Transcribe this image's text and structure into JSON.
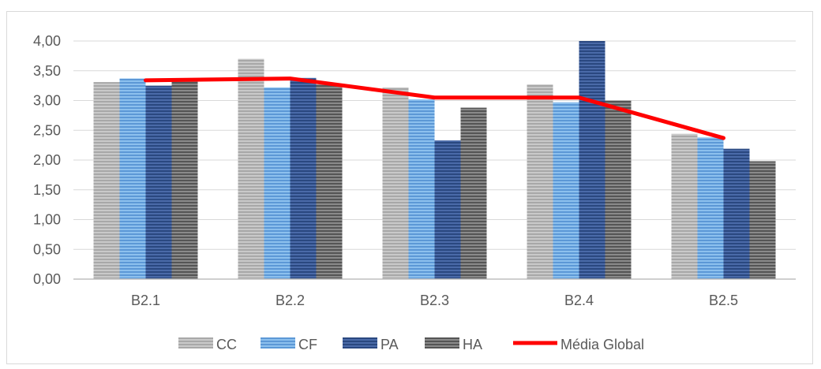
{
  "chart_data": {
    "type": "bar",
    "title": "",
    "xlabel": "",
    "ylabel": "",
    "categories": [
      "B2.1",
      "B2.2",
      "B2.3",
      "B2.4",
      "B2.5"
    ],
    "ylim": [
      0,
      4
    ],
    "yticks": [
      "0,00",
      "0,50",
      "1,00",
      "1,50",
      "2,00",
      "2,50",
      "3,00",
      "3,50",
      "4,00"
    ],
    "grid": true,
    "legend": "bottom",
    "series": [
      {
        "name": "CC",
        "values": [
          3.31,
          3.7,
          3.22,
          3.27,
          2.44
        ],
        "color": "#b9b9b9"
      },
      {
        "name": "CF",
        "values": [
          3.37,
          3.22,
          3.02,
          2.97,
          2.38
        ],
        "color": "#6fa8e0"
      },
      {
        "name": "PA",
        "values": [
          3.25,
          3.38,
          2.33,
          4.0,
          2.19
        ],
        "color": "#3a5a96"
      },
      {
        "name": "HA",
        "values": [
          3.36,
          3.27,
          2.88,
          3.0,
          1.98
        ],
        "color": "#6f6f6f"
      }
    ],
    "line_series": {
      "name": "Média Global",
      "values": [
        3.34,
        3.37,
        3.05,
        3.05,
        2.37
      ],
      "color": "#ff0000"
    }
  }
}
